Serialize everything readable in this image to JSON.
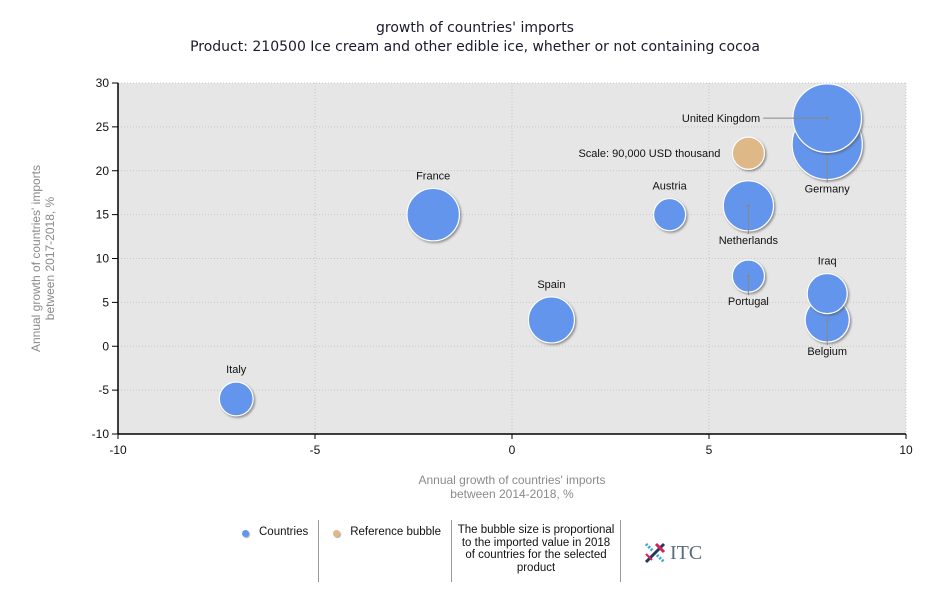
{
  "chart_data": {
    "type": "scatter",
    "subtype": "bubble",
    "title": "growth of countries' imports",
    "subtitle": "Product: 210500 Ice cream and other edible ice, whether or not containing cocoa",
    "xlabel_lines": [
      "Annual growth of countries' imports",
      "between 2014-2018, %"
    ],
    "ylabel_lines": [
      "Annual growth of countries' imports",
      "between 2017-2018, %"
    ],
    "xlim": [
      -10,
      10
    ],
    "ylim": [
      -10,
      30
    ],
    "xticks": [
      -10,
      -5,
      0,
      5,
      10
    ],
    "yticks": [
      -10,
      -5,
      0,
      5,
      10,
      15,
      20,
      25,
      30
    ],
    "grid": true,
    "colors": {
      "countries": "#6495ED",
      "reference": "#DEB887",
      "plot_bg": "#E6E6E6"
    },
    "reference_bubble": {
      "label": "Scale: 90,000 USD thousand",
      "x": 6,
      "y": 22,
      "size": 90000
    },
    "points": [
      {
        "name": "United Kingdom",
        "x": 8,
        "y": 26,
        "size": 410000,
        "label_pos": "left"
      },
      {
        "name": "Germany",
        "x": 8,
        "y": 23,
        "size": 430000,
        "label_pos": "below"
      },
      {
        "name": "France",
        "x": -2,
        "y": 15,
        "size": 240000,
        "label_pos": "above"
      },
      {
        "name": "Austria",
        "x": 4,
        "y": 15,
        "size": 90000,
        "label_pos": "above"
      },
      {
        "name": "Netherlands",
        "x": 6,
        "y": 16,
        "size": 220000,
        "label_pos": "below"
      },
      {
        "name": "Portugal",
        "x": 6,
        "y": 8,
        "size": 90000,
        "label_pos": "below"
      },
      {
        "name": "Iraq",
        "x": 8,
        "y": 6,
        "size": 140000,
        "label_pos": "above"
      },
      {
        "name": "Belgium",
        "x": 8,
        "y": 3,
        "size": 170000,
        "label_pos": "below"
      },
      {
        "name": "Spain",
        "x": 1,
        "y": 3,
        "size": 185000,
        "label_pos": "above"
      },
      {
        "name": "Italy",
        "x": -7,
        "y": -6,
        "size": 100000,
        "label_pos": "above"
      }
    ]
  },
  "legend": {
    "countries_label": "Countries",
    "reference_label": "Reference bubble",
    "note": "The bubble size is proportional to the imported value in 2018 of countries for the selected product",
    "logo_text": "ITC"
  }
}
